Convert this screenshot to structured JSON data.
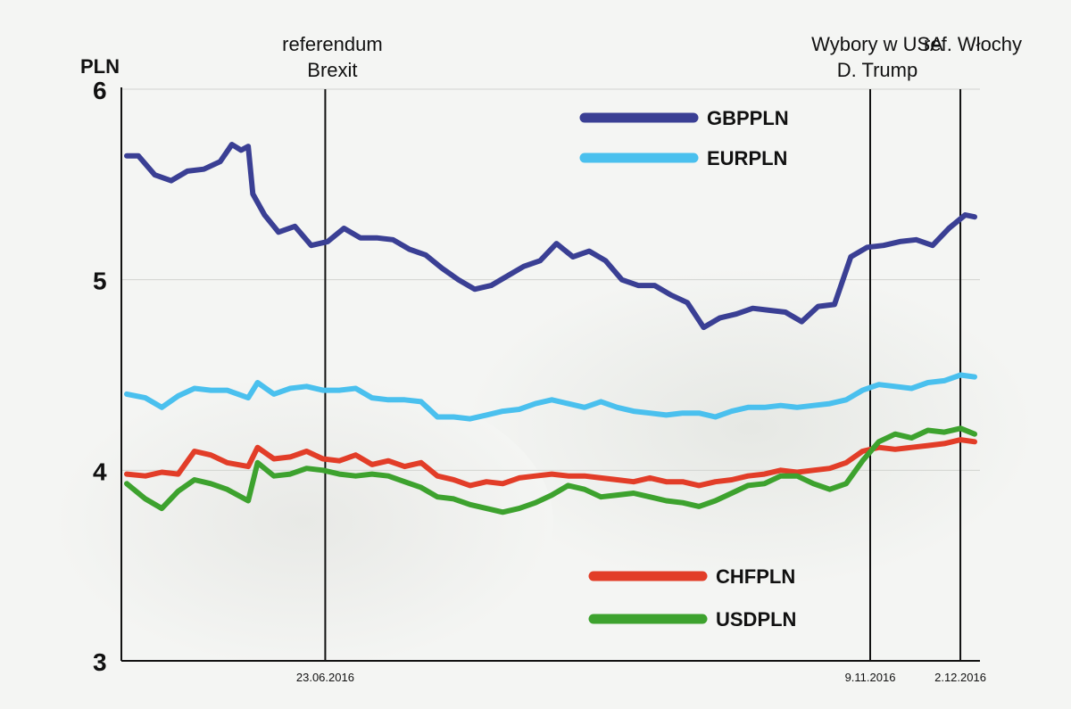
{
  "chart_data": {
    "type": "line",
    "y_unit_label": "PLN",
    "ylim": [
      3,
      6
    ],
    "yticks": [
      "3",
      "4",
      "5",
      "6"
    ],
    "grid": true,
    "legend_positions": [
      "top-center",
      "bottom-center"
    ],
    "x_tick_labels": [
      {
        "date": "2016-06-23",
        "label": "23.06.2016"
      },
      {
        "date": "2016-11-09",
        "label": "9.11.2016"
      },
      {
        "date": "2016-12-02",
        "label": "2.12.2016"
      }
    ],
    "x_start": "2016-05-02",
    "x_end": "2016-12-07",
    "events": [
      {
        "date": "2016-06-23",
        "lines": [
          "referendum",
          "Brexit"
        ]
      },
      {
        "date": "2016-11-09",
        "lines": [
          "Wybory w USA",
          "D. Trump"
        ]
      },
      {
        "date": "2016-12-02",
        "lines": [
          "ref. Włochy"
        ]
      }
    ],
    "series": [
      {
        "name": "GBPPLN",
        "color": "#3a3f94",
        "points": [
          [
            "2016-05-02",
            5.65
          ],
          [
            "2016-05-07",
            5.65
          ],
          [
            "2016-05-14",
            5.55
          ],
          [
            "2016-05-21",
            5.52
          ],
          [
            "2016-05-28",
            5.57
          ],
          [
            "2016-06-04",
            5.58
          ],
          [
            "2016-06-11",
            5.62
          ],
          [
            "2016-06-16",
            5.71
          ],
          [
            "2016-06-20",
            5.68
          ],
          [
            "2016-06-23",
            5.7
          ],
          [
            "2016-06-25",
            5.45
          ],
          [
            "2016-06-30",
            5.34
          ],
          [
            "2016-07-06",
            5.25
          ],
          [
            "2016-07-13",
            5.28
          ],
          [
            "2016-07-20",
            5.18
          ],
          [
            "2016-07-27",
            5.2
          ],
          [
            "2016-08-03",
            5.27
          ],
          [
            "2016-08-10",
            5.22
          ],
          [
            "2016-08-17",
            5.22
          ],
          [
            "2016-08-24",
            5.21
          ],
          [
            "2016-08-31",
            5.16
          ],
          [
            "2016-09-07",
            5.13
          ],
          [
            "2016-09-14",
            5.06
          ],
          [
            "2016-09-21",
            5.0
          ],
          [
            "2016-09-28",
            4.95
          ],
          [
            "2016-10-05",
            4.97
          ],
          [
            "2016-10-12",
            5.02
          ],
          [
            "2016-10-19",
            5.07
          ],
          [
            "2016-10-26",
            5.1
          ],
          [
            "2016-11-02",
            5.19
          ],
          [
            "2016-11-09",
            5.12
          ],
          [
            "2016-11-16",
            5.15
          ],
          [
            "2016-11-23",
            5.1
          ],
          [
            "2016-11-30",
            5.0
          ],
          [
            "2016-12-07",
            4.97
          ],
          [
            "2016-12-14",
            4.97
          ],
          [
            "2016-12-21",
            4.92
          ],
          [
            "2016-12-28",
            4.88
          ],
          [
            "2017-01-04",
            4.75
          ],
          [
            "2017-01-11",
            4.8
          ],
          [
            "2017-01-18",
            4.82
          ],
          [
            "2017-01-25",
            4.85
          ],
          [
            "2017-02-01",
            4.84
          ],
          [
            "2017-02-08",
            4.83
          ],
          [
            "2017-02-15",
            4.78
          ],
          [
            "2017-02-22",
            4.86
          ],
          [
            "2017-03-01",
            4.87
          ],
          [
            "2017-03-08",
            5.12
          ],
          [
            "2017-03-15",
            5.17
          ],
          [
            "2017-03-22",
            5.18
          ],
          [
            "2017-03-29",
            5.2
          ],
          [
            "2017-04-05",
            5.21
          ],
          [
            "2017-04-12",
            5.18
          ],
          [
            "2017-04-19",
            5.27
          ],
          [
            "2017-04-26",
            5.34
          ],
          [
            "2017-04-30",
            5.33
          ]
        ]
      },
      {
        "name": "EURPLN",
        "color": "#4ac0ee",
        "points": [
          [
            "2016-05-02",
            4.4
          ],
          [
            "2016-05-10",
            4.38
          ],
          [
            "2016-05-17",
            4.33
          ],
          [
            "2016-05-24",
            4.39
          ],
          [
            "2016-05-31",
            4.43
          ],
          [
            "2016-06-07",
            4.42
          ],
          [
            "2016-06-14",
            4.42
          ],
          [
            "2016-06-23",
            4.38
          ],
          [
            "2016-06-27",
            4.46
          ],
          [
            "2016-07-04",
            4.4
          ],
          [
            "2016-07-11",
            4.43
          ],
          [
            "2016-07-18",
            4.44
          ],
          [
            "2016-07-25",
            4.42
          ],
          [
            "2016-08-01",
            4.42
          ],
          [
            "2016-08-08",
            4.43
          ],
          [
            "2016-08-15",
            4.38
          ],
          [
            "2016-08-22",
            4.37
          ],
          [
            "2016-08-29",
            4.37
          ],
          [
            "2016-09-05",
            4.36
          ],
          [
            "2016-09-12",
            4.28
          ],
          [
            "2016-09-19",
            4.28
          ],
          [
            "2016-09-26",
            4.27
          ],
          [
            "2016-10-03",
            4.29
          ],
          [
            "2016-10-10",
            4.31
          ],
          [
            "2016-10-17",
            4.32
          ],
          [
            "2016-10-24",
            4.35
          ],
          [
            "2016-10-31",
            4.37
          ],
          [
            "2016-11-07",
            4.35
          ],
          [
            "2016-11-14",
            4.33
          ],
          [
            "2016-11-21",
            4.36
          ],
          [
            "2016-11-28",
            4.33
          ],
          [
            "2016-12-05",
            4.31
          ],
          [
            "2016-12-12",
            4.3
          ],
          [
            "2016-12-19",
            4.29
          ],
          [
            "2016-12-26",
            4.3
          ],
          [
            "2017-01-02",
            4.3
          ],
          [
            "2017-01-09",
            4.28
          ],
          [
            "2017-01-16",
            4.31
          ],
          [
            "2017-01-23",
            4.33
          ],
          [
            "2017-01-30",
            4.33
          ],
          [
            "2017-02-06",
            4.34
          ],
          [
            "2017-02-13",
            4.33
          ],
          [
            "2017-02-20",
            4.34
          ],
          [
            "2017-02-27",
            4.35
          ],
          [
            "2017-03-06",
            4.37
          ],
          [
            "2017-03-13",
            4.42
          ],
          [
            "2017-03-20",
            4.45
          ],
          [
            "2017-03-27",
            4.44
          ],
          [
            "2017-04-03",
            4.43
          ],
          [
            "2017-04-10",
            4.46
          ],
          [
            "2017-04-17",
            4.47
          ],
          [
            "2017-04-24",
            4.5
          ],
          [
            "2017-04-30",
            4.49
          ]
        ]
      },
      {
        "name": "CHFPLN",
        "color": "#e23d28",
        "points": [
          [
            "2016-05-02",
            3.98
          ],
          [
            "2016-05-10",
            3.97
          ],
          [
            "2016-05-17",
            3.99
          ],
          [
            "2016-05-24",
            3.98
          ],
          [
            "2016-05-31",
            4.1
          ],
          [
            "2016-06-07",
            4.08
          ],
          [
            "2016-06-14",
            4.04
          ],
          [
            "2016-06-23",
            4.02
          ],
          [
            "2016-06-27",
            4.12
          ],
          [
            "2016-07-04",
            4.06
          ],
          [
            "2016-07-11",
            4.07
          ],
          [
            "2016-07-18",
            4.1
          ],
          [
            "2016-07-25",
            4.06
          ],
          [
            "2016-08-01",
            4.05
          ],
          [
            "2016-08-08",
            4.08
          ],
          [
            "2016-08-15",
            4.03
          ],
          [
            "2016-08-22",
            4.05
          ],
          [
            "2016-08-29",
            4.02
          ],
          [
            "2016-09-05",
            4.04
          ],
          [
            "2016-09-12",
            3.97
          ],
          [
            "2016-09-19",
            3.95
          ],
          [
            "2016-09-26",
            3.92
          ],
          [
            "2016-10-03",
            3.94
          ],
          [
            "2016-10-10",
            3.93
          ],
          [
            "2016-10-17",
            3.96
          ],
          [
            "2016-10-24",
            3.97
          ],
          [
            "2016-10-31",
            3.98
          ],
          [
            "2016-11-07",
            3.97
          ],
          [
            "2016-11-14",
            3.97
          ],
          [
            "2016-11-21",
            3.96
          ],
          [
            "2016-11-28",
            3.95
          ],
          [
            "2016-12-05",
            3.94
          ],
          [
            "2016-12-12",
            3.96
          ],
          [
            "2016-12-19",
            3.94
          ],
          [
            "2016-12-26",
            3.94
          ],
          [
            "2017-01-02",
            3.92
          ],
          [
            "2017-01-09",
            3.94
          ],
          [
            "2017-01-16",
            3.95
          ],
          [
            "2017-01-23",
            3.97
          ],
          [
            "2017-01-30",
            3.98
          ],
          [
            "2017-02-06",
            4.0
          ],
          [
            "2017-02-13",
            3.99
          ],
          [
            "2017-02-20",
            4.0
          ],
          [
            "2017-02-27",
            4.01
          ],
          [
            "2017-03-06",
            4.04
          ],
          [
            "2017-03-13",
            4.1
          ],
          [
            "2017-03-20",
            4.12
          ],
          [
            "2017-03-27",
            4.11
          ],
          [
            "2017-04-03",
            4.12
          ],
          [
            "2017-04-10",
            4.13
          ],
          [
            "2017-04-17",
            4.14
          ],
          [
            "2017-04-24",
            4.16
          ],
          [
            "2017-04-30",
            4.15
          ]
        ]
      },
      {
        "name": "USDPLN",
        "color": "#3da22e",
        "points": [
          [
            "2016-05-02",
            3.93
          ],
          [
            "2016-05-10",
            3.85
          ],
          [
            "2016-05-17",
            3.8
          ],
          [
            "2016-05-24",
            3.89
          ],
          [
            "2016-05-31",
            3.95
          ],
          [
            "2016-06-07",
            3.93
          ],
          [
            "2016-06-14",
            3.9
          ],
          [
            "2016-06-23",
            3.84
          ],
          [
            "2016-06-27",
            4.04
          ],
          [
            "2016-07-04",
            3.97
          ],
          [
            "2016-07-11",
            3.98
          ],
          [
            "2016-07-18",
            4.01
          ],
          [
            "2016-07-25",
            4.0
          ],
          [
            "2016-08-01",
            3.98
          ],
          [
            "2016-08-08",
            3.97
          ],
          [
            "2016-08-15",
            3.98
          ],
          [
            "2016-08-22",
            3.97
          ],
          [
            "2016-08-29",
            3.94
          ],
          [
            "2016-09-05",
            3.91
          ],
          [
            "2016-09-12",
            3.86
          ],
          [
            "2016-09-19",
            3.85
          ],
          [
            "2016-09-26",
            3.82
          ],
          [
            "2016-10-03",
            3.8
          ],
          [
            "2016-10-10",
            3.78
          ],
          [
            "2016-10-17",
            3.8
          ],
          [
            "2016-10-24",
            3.83
          ],
          [
            "2016-10-31",
            3.87
          ],
          [
            "2016-11-07",
            3.92
          ],
          [
            "2016-11-14",
            3.9
          ],
          [
            "2016-11-21",
            3.86
          ],
          [
            "2016-11-28",
            3.87
          ],
          [
            "2016-12-05",
            3.88
          ],
          [
            "2016-12-12",
            3.86
          ],
          [
            "2016-12-19",
            3.84
          ],
          [
            "2016-12-26",
            3.83
          ],
          [
            "2017-01-02",
            3.81
          ],
          [
            "2017-01-09",
            3.84
          ],
          [
            "2017-01-16",
            3.88
          ],
          [
            "2017-01-23",
            3.92
          ],
          [
            "2017-01-30",
            3.93
          ],
          [
            "2017-02-06",
            3.97
          ],
          [
            "2017-02-13",
            3.97
          ],
          [
            "2017-02-20",
            3.93
          ],
          [
            "2017-02-27",
            3.9
          ],
          [
            "2017-03-06",
            3.93
          ],
          [
            "2017-03-13",
            4.05
          ],
          [
            "2017-03-20",
            4.15
          ],
          [
            "2017-03-27",
            4.19
          ],
          [
            "2017-04-03",
            4.17
          ],
          [
            "2017-04-10",
            4.21
          ],
          [
            "2017-04-17",
            4.2
          ],
          [
            "2017-04-24",
            4.22
          ],
          [
            "2017-04-30",
            4.19
          ]
        ]
      }
    ]
  }
}
